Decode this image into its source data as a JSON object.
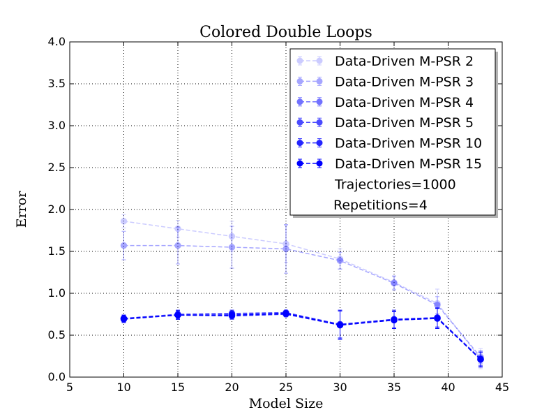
{
  "chart_data": {
    "type": "line",
    "title": "Colored Double Loops",
    "xlabel": "Model Size",
    "ylabel": "Error",
    "xlim": [
      5,
      45
    ],
    "ylim": [
      0.0,
      4.0
    ],
    "xticks": [
      5,
      10,
      15,
      20,
      25,
      30,
      35,
      40,
      45
    ],
    "xtick_labels": [
      "5",
      "10",
      "15",
      "20",
      "25",
      "30",
      "35",
      "40",
      "45"
    ],
    "yticks": [
      0.0,
      0.5,
      1.0,
      1.5,
      2.0,
      2.5,
      3.0,
      3.5,
      4.0
    ],
    "ytick_labels": [
      "0.0",
      "0.5",
      "1.0",
      "1.5",
      "2.0",
      "2.5",
      "3.0",
      "3.5",
      "4.0"
    ],
    "grid": true,
    "legend_position": "top-right",
    "line_style": "dashed",
    "color": "#0000ff",
    "x": [
      10,
      15,
      20,
      25,
      30,
      35,
      39,
      43
    ],
    "series": [
      {
        "name": "Data-Driven M-PSR 2",
        "alpha": 0.2,
        "values": [
          1.86,
          1.77,
          1.68,
          1.59,
          1.41,
          1.13,
          0.88,
          0.22
        ],
        "errors": [
          0.08,
          0.1,
          0.18,
          0.22,
          0.12,
          0.08,
          0.17,
          0.12
        ]
      },
      {
        "name": "Data-Driven M-PSR 3",
        "alpha": 0.35,
        "values": [
          1.57,
          1.57,
          1.55,
          1.53,
          1.39,
          1.12,
          0.86,
          0.24
        ],
        "errors": [
          0.17,
          0.22,
          0.25,
          0.29,
          0.1,
          0.08,
          0.1,
          0.08
        ]
      },
      {
        "name": "Data-Driven M-PSR 4",
        "alpha": 0.55,
        "values": [
          0.7,
          0.74,
          0.75,
          0.76,
          0.63,
          0.69,
          0.71,
          0.21
        ],
        "errors": [
          0.04,
          0.05,
          0.04,
          0.03,
          0.16,
          0.1,
          0.11,
          0.08
        ]
      },
      {
        "name": "Data-Driven M-PSR 5",
        "alpha": 0.7,
        "values": [
          0.7,
          0.75,
          0.76,
          0.77,
          0.63,
          0.69,
          0.71,
          0.22
        ],
        "errors": [
          0.04,
          0.05,
          0.04,
          0.03,
          0.17,
          0.11,
          0.12,
          0.08
        ]
      },
      {
        "name": "Data-Driven M-PSR 10",
        "alpha": 0.85,
        "values": [
          0.69,
          0.74,
          0.73,
          0.75,
          0.62,
          0.68,
          0.7,
          0.21
        ],
        "errors": [
          0.04,
          0.05,
          0.04,
          0.03,
          0.17,
          0.1,
          0.12,
          0.09
        ]
      },
      {
        "name": "Data-Driven M-PSR 15",
        "alpha": 1.0,
        "values": [
          0.7,
          0.74,
          0.74,
          0.76,
          0.62,
          0.68,
          0.7,
          0.21
        ],
        "errors": [
          0.04,
          0.05,
          0.04,
          0.03,
          0.17,
          0.1,
          0.12,
          0.09
        ]
      }
    ],
    "legend_notes": [
      "Trajectories=1000",
      "Repetitions=4"
    ]
  }
}
